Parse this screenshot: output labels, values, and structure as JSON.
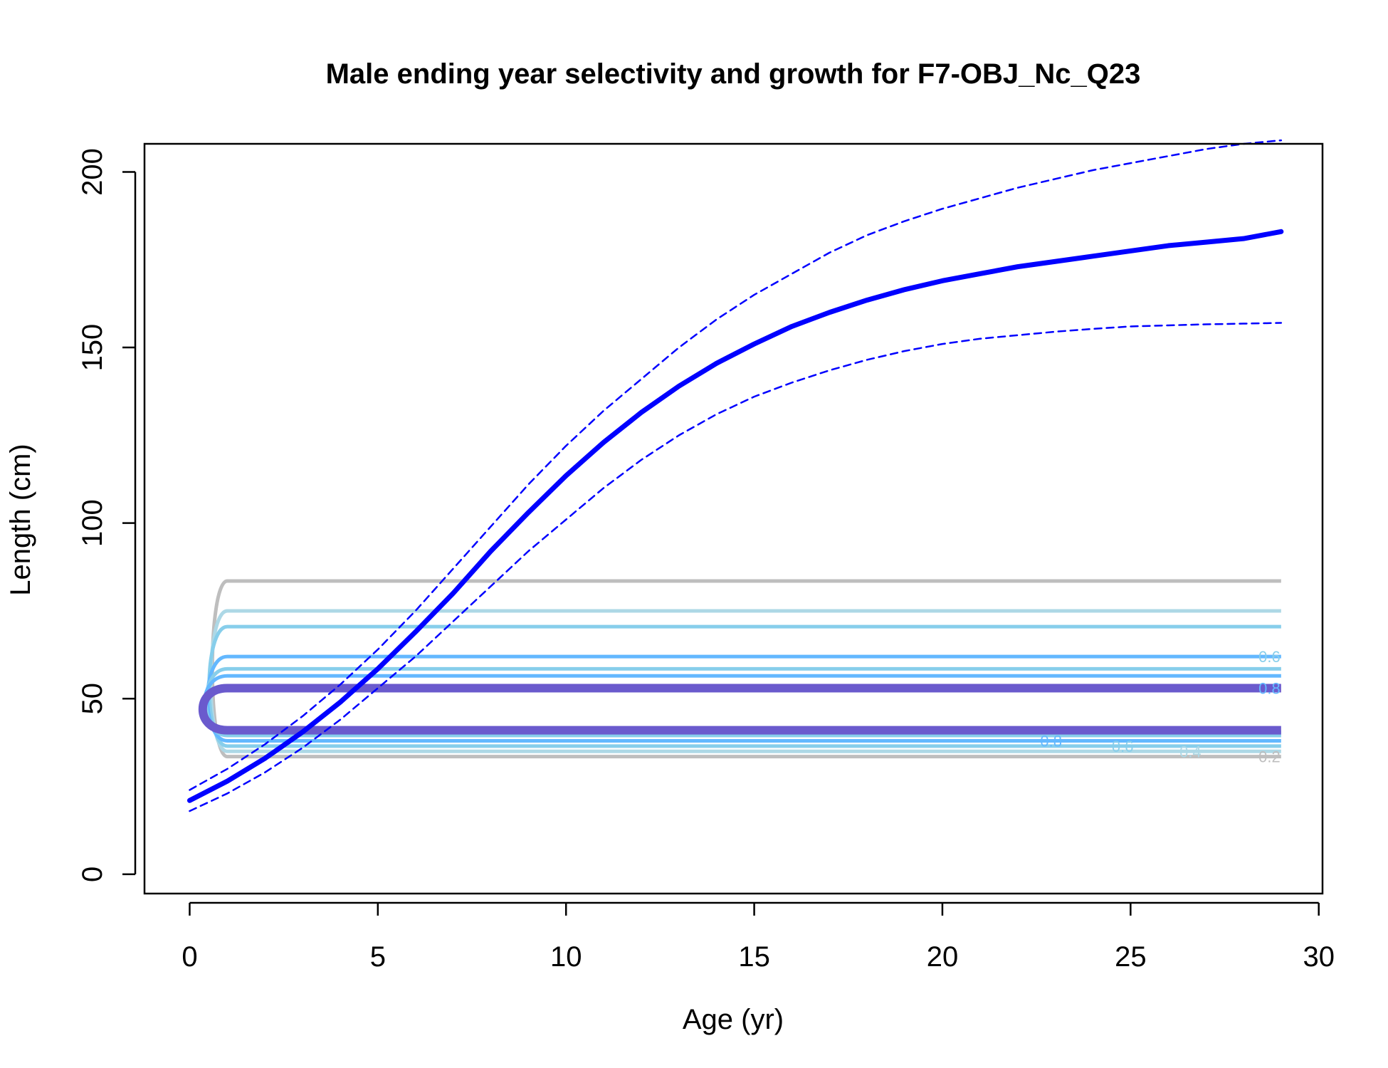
{
  "chart_data": {
    "type": "line",
    "title": "Male ending year selectivity and growth for F7-OBJ_Nc_Q23",
    "xlabel": "Age (yr)",
    "ylabel": "Length (cm)",
    "xlim": [
      -1.2,
      30.1
    ],
    "ylim": [
      -5.5,
      208
    ],
    "xticks": [
      0,
      5,
      10,
      15,
      20,
      25,
      30
    ],
    "yticks": [
      0,
      50,
      100,
      150,
      200
    ],
    "grid": false,
    "legend": "none",
    "colors": {
      "mean": "#0000ff",
      "ci": "#0000ff",
      "contour_0.2": "#bebebe",
      "contour_0.4": "#add8e6",
      "contour_0.6": "#87ceeb",
      "contour_0.8": "#63b8ff",
      "contour_1": "#6a5acd"
    },
    "series": [
      {
        "role": "mean",
        "style": "solid-thick",
        "x": [
          0,
          1,
          2,
          3,
          4,
          5,
          6,
          7,
          8,
          9,
          10,
          11,
          12,
          13,
          14,
          15,
          16,
          17,
          18,
          19,
          20,
          21,
          22,
          23,
          24,
          25,
          26,
          27,
          28,
          29
        ],
        "y": [
          21,
          26.5,
          33,
          40.5,
          49,
          58.5,
          69,
          80,
          92,
          103,
          113.5,
          123,
          131.5,
          139,
          145.5,
          151,
          156,
          160,
          163.5,
          166.5,
          169,
          171,
          173,
          174.5,
          176,
          177.5,
          179,
          180,
          181,
          183
        ]
      },
      {
        "role": "upper",
        "style": "dashed",
        "x": [
          0,
          1,
          2,
          3,
          4,
          5,
          6,
          7,
          8,
          9,
          10,
          11,
          12,
          13,
          14,
          15,
          16,
          17,
          18,
          19,
          20,
          21,
          22,
          23,
          24,
          25,
          26,
          27,
          28,
          29
        ],
        "y": [
          24,
          30,
          37,
          45,
          54,
          64,
          75,
          87,
          99,
          111,
          122,
          132,
          141,
          150,
          158,
          165,
          171,
          177,
          182,
          186,
          189.5,
          192.5,
          195.5,
          198,
          200.5,
          202.5,
          204.5,
          206.5,
          208,
          209
        ]
      },
      {
        "role": "lower",
        "style": "dashed",
        "x": [
          0,
          1,
          2,
          3,
          4,
          5,
          6,
          7,
          8,
          9,
          10,
          11,
          12,
          13,
          14,
          15,
          16,
          17,
          18,
          19,
          20,
          21,
          22,
          23,
          24,
          25,
          26,
          27,
          28,
          29
        ],
        "y": [
          18,
          23,
          29,
          36,
          44,
          53,
          62,
          72,
          82,
          92,
          101,
          110,
          118,
          125,
          131,
          136,
          140,
          143.5,
          146.5,
          149,
          151,
          152.5,
          153.5,
          154.5,
          155.3,
          156,
          156.3,
          156.6,
          156.8,
          157
        ]
      }
    ],
    "contours": [
      {
        "level": 0.2,
        "lo": 33.5,
        "hi": 83.5,
        "label": "0.2"
      },
      {
        "level": 0.4,
        "lo": 35,
        "hi": 75,
        "label": "0.4"
      },
      {
        "level": 0.6,
        "lo": 36.5,
        "hi": 70.5,
        "label": "0.6"
      },
      {
        "level": 0.8,
        "lo": 38,
        "hi": 62,
        "label": "0.8"
      },
      {
        "level": 0.6,
        "lo": 39.5,
        "hi": 58.5,
        "label": "0.6"
      },
      {
        "level": 0.8,
        "lo": 40.5,
        "hi": 56.5,
        "label": "0.8"
      },
      {
        "level": 1,
        "lo": 41,
        "hi": 53,
        "label": "1"
      }
    ]
  }
}
